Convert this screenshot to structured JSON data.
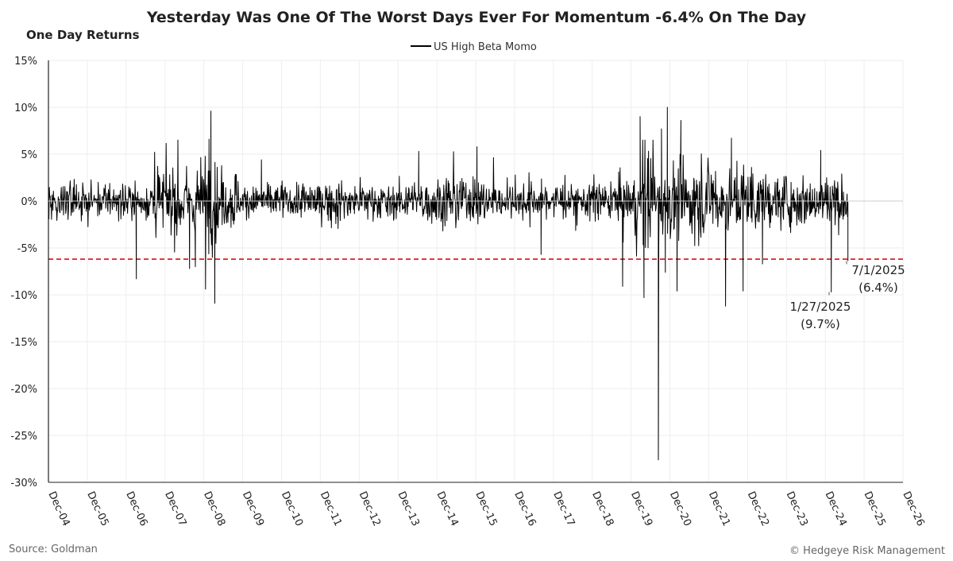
{
  "chart_data": {
    "type": "line",
    "title": "Yesterday Was One Of The Worst Days Ever For Momentum -6.4% On The Day",
    "ylabel": "One Day Returns",
    "ylim": [
      -30,
      15
    ],
    "y_ticks": [
      15,
      10,
      5,
      0,
      -5,
      -10,
      -15,
      -20,
      -25,
      -30
    ],
    "y_tick_labels": [
      "15%",
      "10%",
      "5%",
      "0%",
      "-5%",
      "-10%",
      "-15%",
      "-20%",
      "-25%",
      "-30%"
    ],
    "x_tick_labels": [
      "Dec-04",
      "Dec-05",
      "Dec-06",
      "Dec-07",
      "Dec-08",
      "Dec-09",
      "Dec-10",
      "Dec-11",
      "Dec-12",
      "Dec-13",
      "Dec-14",
      "Dec-15",
      "Dec-16",
      "Dec-17",
      "Dec-18",
      "Dec-19",
      "Dec-20",
      "Dec-21",
      "Dec-22",
      "Dec-23",
      "Dec-24",
      "Dec-25",
      "Dec-26"
    ],
    "x_range": [
      "2004-12",
      "2026-12"
    ],
    "grid": true,
    "legend_position": "top-center",
    "series": [
      {
        "name": "US High Beta Momo",
        "color": "#000000",
        "daily_returns_pct_by_period": [
          {
            "period": "2004-12 to 2007-06",
            "typical_range": [
              -3,
              3.5
            ]
          },
          {
            "period": "2007-02",
            "notable_low": -8.3
          },
          {
            "period": "2007-07 to 2009-09",
            "typical_range": [
              -7,
              6.5
            ],
            "notable_high": 9.6,
            "notable_low": -10.9
          },
          {
            "period": "2009-10 to 2019-12",
            "typical_range": [
              -5,
              5.5
            ],
            "notable_low": -9.1
          },
          {
            "period": "2020-02 to 2020-06",
            "typical_range": [
              -10,
              10
            ],
            "notable_high": 10.0,
            "notable_low": -27.6
          },
          {
            "period": "2020-07 to 2024-12",
            "typical_range": [
              -8,
              7
            ],
            "notable_low": -11.2
          },
          {
            "period": "2025-01-27",
            "value": -9.7
          },
          {
            "period": "2025-07-01",
            "value": -6.4
          }
        ]
      }
    ],
    "reference_line": {
      "y": -6.2,
      "color": "#e02020",
      "style": "dashed"
    },
    "annotations": [
      {
        "date_line": "7/1/2025",
        "value_line": "(6.4%)",
        "date": "2025-07-01",
        "value": -6.4
      },
      {
        "date_line": "1/27/2025",
        "value_line": "(9.7%)",
        "date": "2025-01-27",
        "value": -9.7
      }
    ]
  },
  "footer": {
    "source": "Source: Goldman",
    "copyright": "© Hedgeye Risk Management"
  }
}
